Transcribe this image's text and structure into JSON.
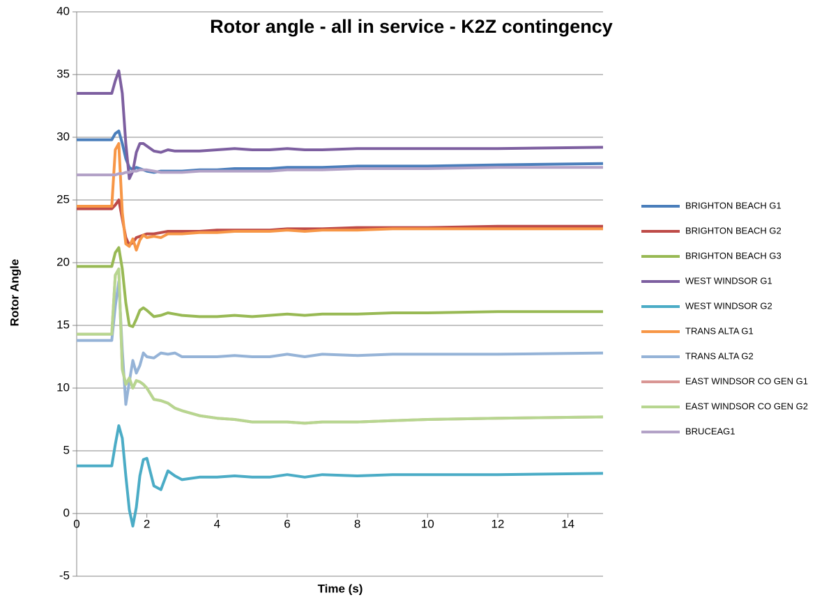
{
  "chart_data": {
    "type": "line",
    "title": "Rotor angle - all in service - K2Z contingency",
    "x_label": "Time (s)",
    "y_label": "Rotor Angle",
    "x": [
      0,
      1.0,
      1.1,
      1.2,
      1.3,
      1.4,
      1.5,
      1.6,
      1.7,
      1.8,
      1.9,
      2.0,
      2.2,
      2.4,
      2.6,
      2.8,
      3.0,
      3.5,
      4,
      4.5,
      5,
      5.5,
      6,
      6.5,
      7,
      8,
      9,
      10,
      12,
      15
    ],
    "series": [
      {
        "name": "BRIGHTON BEACH G1",
        "color": "#4a7ebb",
        "values": [
          29.8,
          29.8,
          30.3,
          30.5,
          29.5,
          28.3,
          27.6,
          27.4,
          27.6,
          27.5,
          27.4,
          27.3,
          27.2,
          27.3,
          27.3,
          27.3,
          27.3,
          27.4,
          27.4,
          27.5,
          27.5,
          27.5,
          27.6,
          27.6,
          27.6,
          27.7,
          27.7,
          27.7,
          27.8,
          27.9
        ]
      },
      {
        "name": "BRIGHTON BEACH G2",
        "color": "#be4b48",
        "values": [
          24.3,
          24.3,
          24.6,
          25.0,
          23.5,
          22.0,
          21.4,
          21.6,
          22.0,
          22.1,
          22.2,
          22.3,
          22.3,
          22.4,
          22.5,
          22.5,
          22.5,
          22.5,
          22.6,
          22.6,
          22.6,
          22.6,
          22.7,
          22.7,
          22.7,
          22.8,
          22.8,
          22.8,
          22.9,
          22.9
        ]
      },
      {
        "name": "BRIGHTON BEACH G3",
        "color": "#98b954",
        "values": [
          19.7,
          19.7,
          20.8,
          21.2,
          19.5,
          16.8,
          15.0,
          14.9,
          15.5,
          16.2,
          16.4,
          16.2,
          15.7,
          15.8,
          16.0,
          15.9,
          15.8,
          15.7,
          15.7,
          15.8,
          15.7,
          15.8,
          15.9,
          15.8,
          15.9,
          15.9,
          16.0,
          16.0,
          16.1,
          16.1
        ]
      },
      {
        "name": "WEST WINDSOR G1",
        "color": "#7d5fa0",
        "values": [
          33.5,
          33.5,
          34.5,
          35.3,
          33.5,
          29.5,
          26.7,
          27.3,
          28.8,
          29.5,
          29.5,
          29.3,
          28.9,
          28.8,
          29.0,
          28.9,
          28.9,
          28.9,
          29.0,
          29.1,
          29.0,
          29.0,
          29.1,
          29.0,
          29.0,
          29.1,
          29.1,
          29.1,
          29.1,
          29.2
        ]
      },
      {
        "name": "WEST WINDSOR G2",
        "color": "#4bacc6",
        "values": [
          3.8,
          3.8,
          5.5,
          7.0,
          6.0,
          3.0,
          0.3,
          -1.0,
          0.5,
          3.0,
          4.3,
          4.4,
          2.2,
          1.9,
          3.4,
          3.0,
          2.7,
          2.9,
          2.9,
          3.0,
          2.9,
          2.9,
          3.1,
          2.9,
          3.1,
          3.0,
          3.1,
          3.1,
          3.1,
          3.2
        ]
      },
      {
        "name": "TRANS ALTA G1",
        "color": "#f79646",
        "values": [
          24.5,
          24.5,
          29.0,
          29.5,
          24.0,
          21.5,
          21.3,
          21.9,
          21.0,
          21.8,
          22.2,
          22.0,
          22.1,
          22.0,
          22.3,
          22.3,
          22.3,
          22.4,
          22.4,
          22.5,
          22.5,
          22.5,
          22.6,
          22.5,
          22.6,
          22.6,
          22.7,
          22.7,
          22.7,
          22.7
        ]
      },
      {
        "name": "TRANS ALTA G2",
        "color": "#95b3d7",
        "values": [
          13.8,
          13.8,
          16.5,
          18.5,
          13.0,
          8.7,
          10.5,
          12.2,
          11.2,
          11.8,
          12.8,
          12.5,
          12.4,
          12.8,
          12.7,
          12.8,
          12.5,
          12.5,
          12.5,
          12.6,
          12.5,
          12.5,
          12.7,
          12.5,
          12.7,
          12.6,
          12.7,
          12.7,
          12.7,
          12.8
        ]
      },
      {
        "name": "EAST WINDSOR CO GEN G1",
        "color": "#d99694",
        "values": [
          14.3,
          14.3,
          19.0,
          19.5,
          11.5,
          10.3,
          10.8,
          10.0,
          10.6,
          10.5,
          10.3,
          10.0,
          9.1,
          9.0,
          8.8,
          8.4,
          8.2,
          7.8,
          7.6,
          7.5,
          7.3,
          7.3,
          7.3,
          7.2,
          7.3,
          7.3,
          7.4,
          7.5,
          7.6,
          7.7
        ]
      },
      {
        "name": "EAST WINDSOR CO GEN G2",
        "color": "#b7d690",
        "values": [
          14.3,
          14.3,
          19.0,
          19.5,
          11.5,
          10.3,
          10.8,
          10.0,
          10.6,
          10.5,
          10.3,
          10.0,
          9.1,
          9.0,
          8.8,
          8.4,
          8.2,
          7.8,
          7.6,
          7.5,
          7.3,
          7.3,
          7.3,
          7.2,
          7.3,
          7.3,
          7.4,
          7.5,
          7.6,
          7.7
        ]
      },
      {
        "name": "BRUCEAG1",
        "color": "#b3a2c7",
        "values": [
          27.0,
          27.0,
          27.0,
          27.1,
          27.1,
          27.2,
          27.2,
          27.3,
          27.3,
          27.4,
          27.4,
          27.4,
          27.3,
          27.2,
          27.2,
          27.2,
          27.2,
          27.3,
          27.3,
          27.3,
          27.3,
          27.3,
          27.4,
          27.4,
          27.4,
          27.5,
          27.5,
          27.5,
          27.6,
          27.6
        ]
      }
    ],
    "xlim": [
      0,
      15
    ],
    "xticks": [
      0,
      2,
      4,
      6,
      8,
      10,
      12,
      14
    ],
    "ylim": [
      -5,
      40
    ],
    "yticks": [
      -5,
      0,
      5,
      10,
      15,
      20,
      25,
      30,
      35,
      40
    ],
    "grid": true,
    "legend": "right"
  }
}
